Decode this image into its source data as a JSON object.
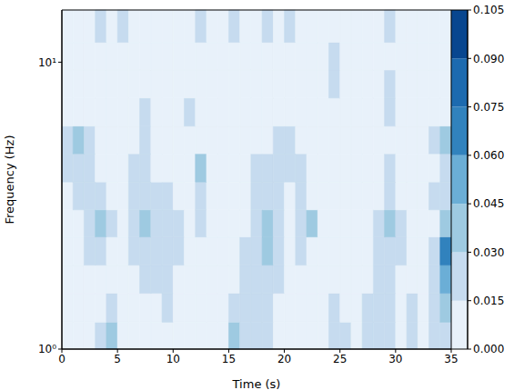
{
  "chart_data": {
    "type": "heatmap",
    "xlabel": "Time (s)",
    "ylabel": "Frequency (Hz)",
    "log": "y",
    "grid": false,
    "xlim": [
      0,
      35
    ],
    "xticks": [
      0,
      5,
      10,
      15,
      20,
      25,
      30,
      35
    ],
    "ylim": [
      1,
      15.2
    ],
    "yticks": [
      {
        "value": 1,
        "label": "10⁰"
      },
      {
        "value": 10,
        "label": "10¹"
      }
    ],
    "x": [
      0.5,
      1.5,
      2.5,
      3.5,
      4.5,
      5.5,
      6.5,
      7.5,
      8.5,
      9.5,
      10.5,
      11.5,
      12.5,
      13.5,
      14.5,
      15.5,
      16.5,
      17.5,
      18.5,
      19.5,
      20.5,
      21.5,
      22.5,
      23.5,
      24.5,
      25.5,
      26.5,
      27.5,
      28.5,
      29.5,
      30.5,
      31.5,
      32.5,
      33.5,
      34.5
    ],
    "y": [
      1.1,
      1.4,
      1.75,
      2.2,
      2.75,
      3.4,
      4.3,
      5.35,
      6.7,
      8.4,
      10.5,
      13.1
    ],
    "cells": [
      [
        0.005,
        0.005,
        0.005,
        0.02,
        0.035,
        0.005,
        0.005,
        0.005,
        0.005,
        0.005,
        0.005,
        0.005,
        0.005,
        0.005,
        0.005,
        0.035,
        0.02,
        0.02,
        0.02,
        0.005,
        0.005,
        0.005,
        0.005,
        0.005,
        0.02,
        0.02,
        0.005,
        0.02,
        0.02,
        0.02,
        0.005,
        0.02,
        0.005,
        0.02,
        0.02
      ],
      [
        0.005,
        0.005,
        0.005,
        0.005,
        0.02,
        0.005,
        0.005,
        0.005,
        0.005,
        0.02,
        0.005,
        0.005,
        0.005,
        0.005,
        0.005,
        0.02,
        0.02,
        0.02,
        0.02,
        0.005,
        0.005,
        0.005,
        0.005,
        0.005,
        0.02,
        0.005,
        0.005,
        0.02,
        0.02,
        0.02,
        0.005,
        0.02,
        0.005,
        0.02,
        0.035
      ],
      [
        0.005,
        0.005,
        0.005,
        0.005,
        0.005,
        0.005,
        0.005,
        0.02,
        0.02,
        0.02,
        0.005,
        0.005,
        0.005,
        0.005,
        0.005,
        0.005,
        0.02,
        0.02,
        0.02,
        0.02,
        0.005,
        0.005,
        0.005,
        0.005,
        0.005,
        0.005,
        0.005,
        0.005,
        0.02,
        0.02,
        0.005,
        0.005,
        0.005,
        0.02,
        0.05
      ],
      [
        0.005,
        0.005,
        0.02,
        0.02,
        0.005,
        0.005,
        0.02,
        0.02,
        0.02,
        0.02,
        0.02,
        0.005,
        0.005,
        0.005,
        0.005,
        0.005,
        0.02,
        0.02,
        0.035,
        0.02,
        0.005,
        0.02,
        0.005,
        0.005,
        0.005,
        0.005,
        0.005,
        0.005,
        0.02,
        0.02,
        0.02,
        0.005,
        0.005,
        0.02,
        0.07
      ],
      [
        0.005,
        0.005,
        0.02,
        0.035,
        0.02,
        0.005,
        0.02,
        0.035,
        0.02,
        0.02,
        0.02,
        0.005,
        0.02,
        0.005,
        0.005,
        0.005,
        0.005,
        0.02,
        0.035,
        0.02,
        0.005,
        0.02,
        0.035,
        0.005,
        0.005,
        0.005,
        0.005,
        0.005,
        0.02,
        0.035,
        0.02,
        0.005,
        0.005,
        0.005,
        0.035
      ],
      [
        0.005,
        0.02,
        0.02,
        0.02,
        0.005,
        0.005,
        0.02,
        0.02,
        0.02,
        0.02,
        0.005,
        0.005,
        0.02,
        0.005,
        0.005,
        0.005,
        0.005,
        0.02,
        0.02,
        0.02,
        0.005,
        0.02,
        0.005,
        0.005,
        0.005,
        0.005,
        0.005,
        0.005,
        0.005,
        0.02,
        0.005,
        0.005,
        0.005,
        0.02,
        0.02
      ],
      [
        0.02,
        0.02,
        0.02,
        0.005,
        0.005,
        0.005,
        0.02,
        0.02,
        0.005,
        0.005,
        0.005,
        0.005,
        0.035,
        0.005,
        0.005,
        0.005,
        0.005,
        0.02,
        0.02,
        0.02,
        0.02,
        0.02,
        0.005,
        0.005,
        0.005,
        0.005,
        0.005,
        0.005,
        0.005,
        0.02,
        0.005,
        0.005,
        0.005,
        0.005,
        0.02
      ],
      [
        0.02,
        0.035,
        0.02,
        0.005,
        0.005,
        0.005,
        0.005,
        0.02,
        0.005,
        0.005,
        0.005,
        0.005,
        0.005,
        0.005,
        0.005,
        0.005,
        0.005,
        0.005,
        0.005,
        0.02,
        0.02,
        0.005,
        0.005,
        0.005,
        0.005,
        0.005,
        0.005,
        0.005,
        0.005,
        0.005,
        0.005,
        0.005,
        0.005,
        0.02,
        0.035
      ],
      [
        0.005,
        0.005,
        0.005,
        0.005,
        0.005,
        0.005,
        0.005,
        0.02,
        0.005,
        0.005,
        0.005,
        0.02,
        0.005,
        0.005,
        0.005,
        0.005,
        0.005,
        0.005,
        0.005,
        0.005,
        0.005,
        0.005,
        0.005,
        0.005,
        0.005,
        0.005,
        0.005,
        0.005,
        0.005,
        0.02,
        0.005,
        0.005,
        0.005,
        0.005,
        0.005
      ],
      [
        0.005,
        0.005,
        0.005,
        0.005,
        0.005,
        0.005,
        0.005,
        0.005,
        0.005,
        0.005,
        0.005,
        0.005,
        0.005,
        0.005,
        0.005,
        0.005,
        0.005,
        0.005,
        0.005,
        0.005,
        0.005,
        0.005,
        0.005,
        0.005,
        0.02,
        0.005,
        0.005,
        0.005,
        0.005,
        0.02,
        0.005,
        0.005,
        0.005,
        0.005,
        0.005
      ],
      [
        0.005,
        0.005,
        0.005,
        0.005,
        0.005,
        0.005,
        0.005,
        0.005,
        0.005,
        0.005,
        0.005,
        0.005,
        0.005,
        0.005,
        0.005,
        0.005,
        0.005,
        0.005,
        0.005,
        0.005,
        0.005,
        0.005,
        0.005,
        0.005,
        0.02,
        0.005,
        0.005,
        0.005,
        0.005,
        0.005,
        0.005,
        0.005,
        0.005,
        0.005,
        0.005
      ],
      [
        0.005,
        0.005,
        0.005,
        0.02,
        0.005,
        0.02,
        0.005,
        0.005,
        0.005,
        0.005,
        0.005,
        0.005,
        0.02,
        0.005,
        0.005,
        0.02,
        0.005,
        0.005,
        0.02,
        0.005,
        0.02,
        0.005,
        0.005,
        0.005,
        0.005,
        0.005,
        0.005,
        0.005,
        0.005,
        0.02,
        0.005,
        0.005,
        0.005,
        0.005,
        0.005
      ]
    ],
    "colorbar_lim": [
      0,
      0.105
    ],
    "colorbar_ticks": [
      {
        "value": 0,
        "label": "0.000"
      },
      {
        "value": 0.015,
        "label": "0.015"
      },
      {
        "value": 0.03,
        "label": "0.030"
      },
      {
        "value": 0.045,
        "label": "0.045"
      },
      {
        "value": 0.06,
        "label": "0.060"
      },
      {
        "value": 0.075,
        "label": "0.075"
      },
      {
        "value": 0.09,
        "label": "0.090"
      },
      {
        "value": 0.105,
        "label": "0.105"
      }
    ]
  }
}
